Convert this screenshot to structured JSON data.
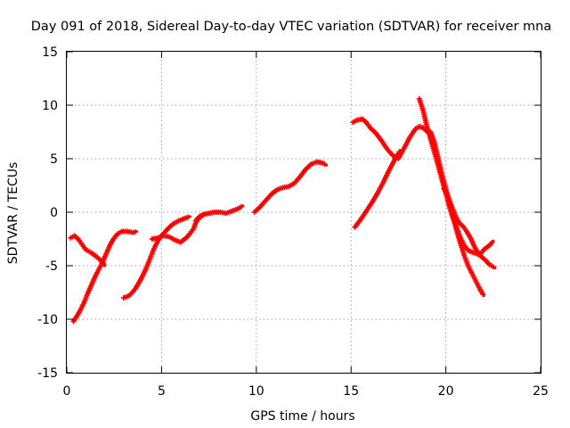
{
  "chart_data": {
    "type": "line",
    "title": "Day 091 of 2018, Sidereal Day-to-day VTEC variation (SDTVAR) for receiver mna",
    "xlabel": "GPS time / hours",
    "ylabel": "SDTVAR / TECUs",
    "xlim": [
      0,
      25
    ],
    "ylim": [
      -15,
      15
    ],
    "xticks": [
      0,
      5,
      10,
      15,
      20,
      25
    ],
    "yticks": [
      -15,
      -10,
      -5,
      0,
      5,
      10,
      15
    ],
    "grid": true,
    "legend": "none",
    "series_color": "#ff0000",
    "series": [
      {
        "points": [
          [
            0.2,
            -2.4
          ],
          [
            0.4,
            -2.2
          ],
          [
            0.6,
            -2.5
          ],
          [
            0.8,
            -3.0
          ],
          [
            1.0,
            -3.5
          ],
          [
            1.3,
            -3.8
          ],
          [
            1.6,
            -4.2
          ],
          [
            1.9,
            -4.7
          ],
          [
            2.0,
            -5.0
          ]
        ]
      },
      {
        "points": [
          [
            0.35,
            -10.2
          ],
          [
            0.5,
            -9.8
          ],
          [
            0.7,
            -9.2
          ],
          [
            0.9,
            -8.5
          ],
          [
            1.1,
            -7.6
          ],
          [
            1.3,
            -6.8
          ],
          [
            1.5,
            -6.0
          ],
          [
            1.7,
            -5.3
          ],
          [
            1.9,
            -4.6
          ],
          [
            2.1,
            -3.8
          ],
          [
            2.3,
            -3.0
          ],
          [
            2.5,
            -2.4
          ],
          [
            2.7,
            -2.0
          ],
          [
            2.9,
            -1.8
          ],
          [
            3.2,
            -1.8
          ],
          [
            3.5,
            -1.9
          ],
          [
            3.7,
            -1.8
          ]
        ]
      },
      {
        "points": [
          [
            3.0,
            -8.0
          ],
          [
            3.3,
            -7.8
          ],
          [
            3.6,
            -7.2
          ],
          [
            3.9,
            -6.3
          ],
          [
            4.2,
            -5.2
          ],
          [
            4.4,
            -4.3
          ],
          [
            4.6,
            -3.4
          ],
          [
            4.8,
            -2.7
          ],
          [
            5.0,
            -2.2
          ],
          [
            5.3,
            -1.6
          ],
          [
            5.6,
            -1.1
          ],
          [
            5.9,
            -0.8
          ],
          [
            6.2,
            -0.6
          ],
          [
            6.5,
            -0.4
          ]
        ]
      },
      {
        "points": [
          [
            4.5,
            -2.5
          ],
          [
            4.8,
            -2.4
          ],
          [
            5.1,
            -2.2
          ],
          [
            5.4,
            -2.3
          ],
          [
            5.7,
            -2.6
          ],
          [
            6.0,
            -2.8
          ],
          [
            6.3,
            -2.4
          ],
          [
            6.5,
            -2.0
          ],
          [
            6.7,
            -1.5
          ],
          [
            6.8,
            -1.0
          ],
          [
            7.0,
            -0.5
          ],
          [
            7.2,
            -0.2
          ],
          [
            7.5,
            -0.1
          ],
          [
            7.8,
            0.0
          ],
          [
            8.1,
            0.0
          ],
          [
            8.4,
            -0.1
          ],
          [
            8.7,
            0.1
          ],
          [
            9.0,
            0.3
          ],
          [
            9.3,
            0.6
          ]
        ]
      },
      {
        "points": [
          [
            6.8,
            -0.8
          ],
          [
            7.0,
            -0.4
          ],
          [
            7.3,
            -0.2
          ]
        ]
      },
      {
        "points": [
          [
            9.9,
            0.0
          ],
          [
            10.2,
            0.5
          ],
          [
            10.5,
            1.1
          ],
          [
            10.8,
            1.7
          ],
          [
            11.1,
            2.1
          ],
          [
            11.4,
            2.3
          ],
          [
            11.7,
            2.4
          ],
          [
            12.0,
            2.7
          ],
          [
            12.3,
            3.3
          ],
          [
            12.6,
            4.0
          ],
          [
            12.9,
            4.5
          ],
          [
            13.2,
            4.7
          ],
          [
            13.5,
            4.6
          ],
          [
            13.7,
            4.4
          ]
        ]
      },
      {
        "points": [
          [
            15.1,
            8.4
          ],
          [
            15.3,
            8.6
          ],
          [
            15.6,
            8.7
          ],
          [
            15.8,
            8.4
          ],
          [
            16.0,
            7.9
          ],
          [
            16.3,
            7.4
          ],
          [
            16.6,
            6.7
          ],
          [
            16.9,
            5.9
          ],
          [
            17.2,
            5.3
          ],
          [
            17.5,
            5.0
          ],
          [
            17.8,
            6.0
          ],
          [
            18.1,
            7.0
          ],
          [
            18.4,
            7.8
          ],
          [
            18.6,
            8.0
          ],
          [
            18.8,
            7.9
          ],
          [
            19.0,
            7.5
          ]
        ]
      },
      {
        "points": [
          [
            15.2,
            -1.4
          ],
          [
            15.5,
            -0.7
          ],
          [
            15.8,
            0.1
          ],
          [
            16.1,
            0.9
          ],
          [
            16.4,
            1.8
          ],
          [
            16.7,
            2.8
          ],
          [
            17.0,
            3.9
          ],
          [
            17.3,
            4.9
          ],
          [
            17.6,
            5.8
          ]
        ]
      },
      {
        "points": [
          [
            18.6,
            10.6
          ],
          [
            18.8,
            9.5
          ],
          [
            19.0,
            8.0
          ],
          [
            19.2,
            6.8
          ],
          [
            19.4,
            5.6
          ],
          [
            19.6,
            4.3
          ],
          [
            19.8,
            3.0
          ],
          [
            20.0,
            1.8
          ],
          [
            20.2,
            0.4
          ],
          [
            20.4,
            -0.7
          ],
          [
            20.6,
            -1.6
          ],
          [
            20.8,
            -2.5
          ],
          [
            21.0,
            -3.2
          ],
          [
            21.2,
            -3.6
          ],
          [
            21.5,
            -3.8
          ],
          [
            21.8,
            -4.0
          ],
          [
            22.0,
            -3.5
          ],
          [
            22.3,
            -3.1
          ],
          [
            22.5,
            -2.7
          ]
        ]
      },
      {
        "points": [
          [
            19.2,
            7.5
          ],
          [
            19.4,
            6.5
          ],
          [
            19.6,
            5.0
          ],
          [
            19.8,
            3.5
          ],
          [
            20.0,
            2.2
          ],
          [
            20.2,
            0.9
          ],
          [
            20.4,
            -0.5
          ],
          [
            20.6,
            -1.9
          ],
          [
            20.8,
            -3.1
          ],
          [
            21.0,
            -4.2
          ],
          [
            21.2,
            -5.1
          ],
          [
            21.4,
            -5.8
          ],
          [
            21.6,
            -6.5
          ],
          [
            21.8,
            -7.2
          ],
          [
            22.0,
            -7.8
          ]
        ]
      },
      {
        "points": [
          [
            19.9,
            2.2
          ],
          [
            20.1,
            1.5
          ],
          [
            20.3,
            0.6
          ],
          [
            20.5,
            -0.3
          ],
          [
            20.7,
            -1.0
          ],
          [
            20.9,
            -1.3
          ],
          [
            21.1,
            -1.8
          ],
          [
            21.3,
            -2.4
          ],
          [
            21.5,
            -3.2
          ],
          [
            21.7,
            -3.8
          ],
          [
            21.9,
            -4.2
          ],
          [
            22.1,
            -4.5
          ],
          [
            22.3,
            -4.9
          ],
          [
            22.6,
            -5.2
          ]
        ]
      }
    ]
  }
}
